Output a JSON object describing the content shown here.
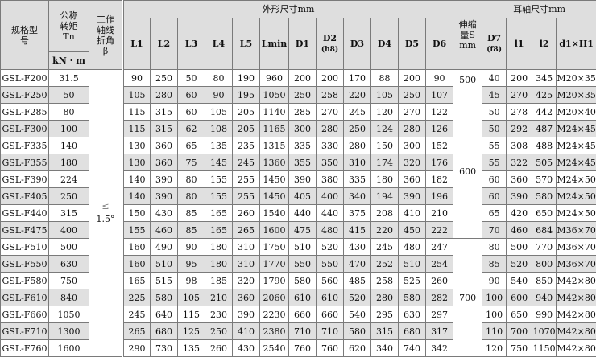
{
  "header": {
    "model": "规格型号",
    "torque": "公称转矩Tn",
    "torque_unit": "kN · m",
    "angle": "工作轴线折角β",
    "outer_dims": "外形尺寸mm",
    "stroke": "伸缩量S mm",
    "trunnion_dims": "耳轴尺寸mm",
    "outer_cols": [
      "L1",
      "L2",
      "L3",
      "L4",
      "L5",
      "Lmin",
      "D1",
      "D2",
      "D3",
      "D4",
      "D5",
      "D6"
    ],
    "outer_cols_sub": [
      "",
      "",
      "",
      "",
      "",
      "",
      "",
      "(h8)",
      "",
      "",
      "",
      ""
    ],
    "trunnion_cols": [
      "D7",
      "l1",
      "l2",
      "d1×H1"
    ],
    "trunnion_cols_sub": [
      "(f8)",
      "",
      "",
      ""
    ]
  },
  "angle_value": {
    "le": "≤",
    "deg": "1.5°"
  },
  "stroke_values": [
    "500",
    "600",
    "700"
  ],
  "rows": [
    [
      "GSL-F200",
      "31.5",
      "90",
      "250",
      "50",
      "80",
      "190",
      "960",
      "200",
      "200",
      "170",
      "88",
      "200",
      "90",
      "40",
      "200",
      "345",
      "M20×35"
    ],
    [
      "GSL-F250",
      "50",
      "105",
      "280",
      "60",
      "90",
      "195",
      "1050",
      "250",
      "258",
      "220",
      "105",
      "250",
      "107",
      "45",
      "270",
      "425",
      "M20×35"
    ],
    [
      "GSL-F285",
      "80",
      "115",
      "315",
      "60",
      "105",
      "205",
      "1140",
      "285",
      "270",
      "245",
      "120",
      "270",
      "122",
      "50",
      "278",
      "442",
      "M20×40"
    ],
    [
      "GSL-F300",
      "100",
      "115",
      "315",
      "62",
      "108",
      "205",
      "1165",
      "300",
      "280",
      "250",
      "124",
      "280",
      "126",
      "50",
      "292",
      "487",
      "M24×45"
    ],
    [
      "GSL-F335",
      "140",
      "130",
      "360",
      "65",
      "135",
      "235",
      "1315",
      "335",
      "330",
      "280",
      "150",
      "300",
      "152",
      "55",
      "308",
      "488",
      "M24×45"
    ],
    [
      "GSL-F355",
      "180",
      "130",
      "360",
      "75",
      "145",
      "245",
      "1360",
      "355",
      "350",
      "310",
      "174",
      "320",
      "176",
      "55",
      "322",
      "505",
      "M24×45"
    ],
    [
      "GSL-F390",
      "224",
      "140",
      "390",
      "80",
      "155",
      "255",
      "1450",
      "390",
      "380",
      "335",
      "180",
      "360",
      "182",
      "60",
      "360",
      "570",
      "M24×50"
    ],
    [
      "GSL-F405",
      "250",
      "140",
      "390",
      "80",
      "155",
      "255",
      "1450",
      "405",
      "400",
      "340",
      "194",
      "390",
      "196",
      "60",
      "390",
      "580",
      "M24×50"
    ],
    [
      "GSL-F440",
      "315",
      "150",
      "430",
      "85",
      "165",
      "260",
      "1540",
      "440",
      "440",
      "375",
      "208",
      "410",
      "210",
      "65",
      "420",
      "650",
      "M24×50"
    ],
    [
      "GSL-F475",
      "400",
      "155",
      "460",
      "85",
      "165",
      "265",
      "1600",
      "475",
      "480",
      "415",
      "220",
      "450",
      "222",
      "70",
      "460",
      "684",
      "M36×70"
    ],
    [
      "GSL-F510",
      "500",
      "160",
      "490",
      "90",
      "180",
      "310",
      "1750",
      "510",
      "520",
      "430",
      "245",
      "480",
      "247",
      "80",
      "500",
      "770",
      "M36×70"
    ],
    [
      "GSL-F550",
      "630",
      "160",
      "510",
      "95",
      "180",
      "310",
      "1770",
      "550",
      "550",
      "470",
      "252",
      "510",
      "254",
      "85",
      "520",
      "800",
      "M36×70"
    ],
    [
      "GSL-F580",
      "750",
      "165",
      "515",
      "98",
      "185",
      "320",
      "1790",
      "580",
      "560",
      "485",
      "258",
      "525",
      "260",
      "90",
      "540",
      "850",
      "M42×80"
    ],
    [
      "GSL-F610",
      "840",
      "225",
      "580",
      "105",
      "210",
      "360",
      "2060",
      "610",
      "610",
      "520",
      "280",
      "580",
      "282",
      "100",
      "600",
      "940",
      "M42×80"
    ],
    [
      "GSL-F660",
      "1050",
      "245",
      "640",
      "115",
      "230",
      "390",
      "2230",
      "660",
      "660",
      "540",
      "295",
      "630",
      "297",
      "100",
      "650",
      "990",
      "M42×80"
    ],
    [
      "GSL-F710",
      "1300",
      "265",
      "680",
      "125",
      "250",
      "410",
      "2380",
      "710",
      "710",
      "580",
      "315",
      "680",
      "317",
      "110",
      "700",
      "1070",
      "M42×80"
    ],
    [
      "GSL-F760",
      "1600",
      "290",
      "730",
      "135",
      "260",
      "430",
      "2540",
      "760",
      "760",
      "620",
      "340",
      "740",
      "342",
      "120",
      "750",
      "1150",
      "M42×80"
    ]
  ],
  "colors": {
    "header_bg": "#dedede",
    "stripe_bg": "#e0e0e0",
    "border": "#7a7a7a"
  }
}
